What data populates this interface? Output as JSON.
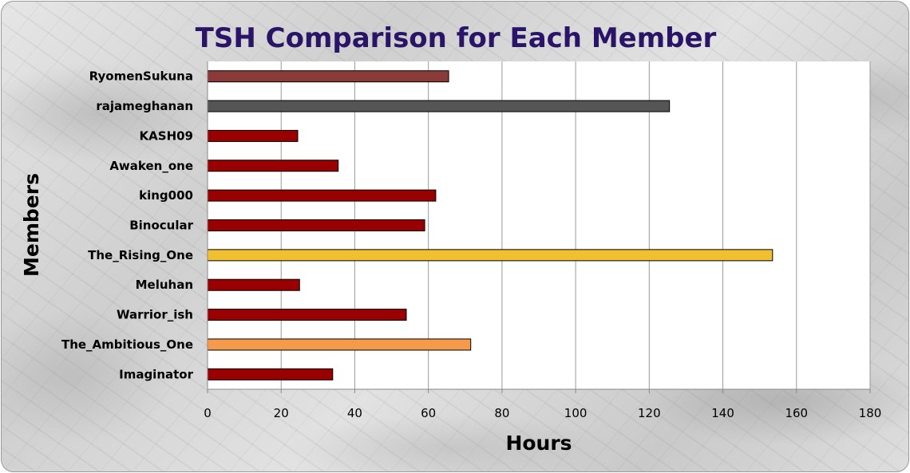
{
  "chart_data": {
    "type": "bar",
    "orientation": "horizontal",
    "title": "TSH Comparison for Each Member",
    "xlabel": "Hours",
    "ylabel": "Members",
    "xlim": [
      0,
      180
    ],
    "x_ticks": [
      0,
      20,
      40,
      60,
      80,
      100,
      120,
      140,
      160,
      180
    ],
    "grid": "vertical",
    "categories": [
      "RyomenSukuna",
      "rajameghanan",
      "KASH09",
      "Awaken_one",
      "king000",
      "Binocular",
      "The_Rising_One",
      "Meluhan",
      "Warrior_ish",
      "The_Ambitious_One",
      "Imaginator"
    ],
    "values": [
      65.5,
      125.5,
      24.5,
      35.5,
      62,
      59,
      153.5,
      25,
      54,
      71.5,
      34
    ],
    "bar_colors": [
      "#8b3a3a",
      "#555555",
      "#990000",
      "#990000",
      "#990000",
      "#990000",
      "#f0c030",
      "#990000",
      "#990000",
      "#f59a4a",
      "#990000"
    ]
  }
}
